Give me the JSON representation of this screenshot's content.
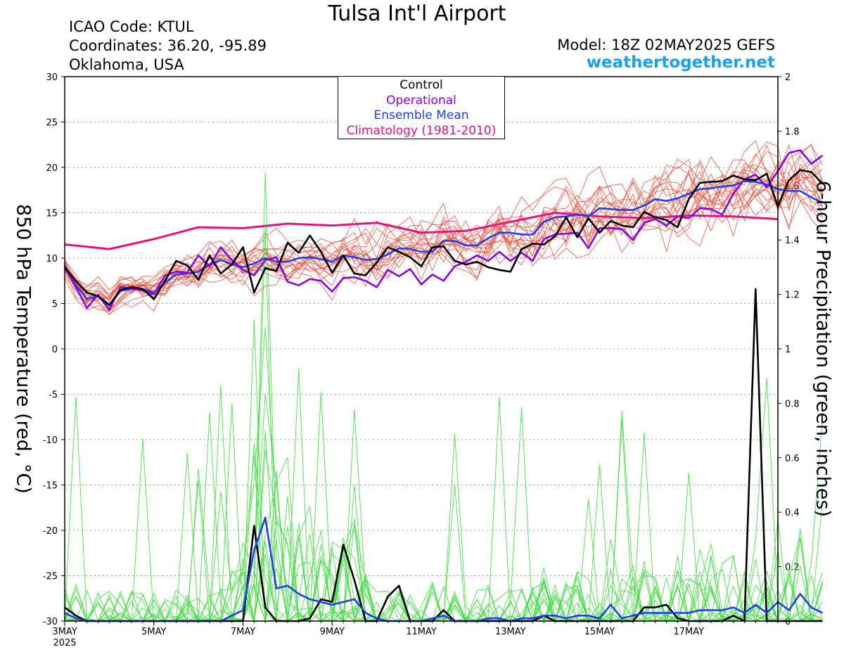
{
  "header": {
    "title": "Tulsa Int'l Airport",
    "icao": "ICAO Code: KTUL",
    "coordinates": "Coordinates: 36.20, -95.89",
    "location": "Oklahoma, USA",
    "model": "Model: 18Z 02MAY2025 GEFS",
    "site": "weathertogether.net"
  },
  "colors": {
    "temp_members": "#f0503c",
    "precip_members": "#3cdc3c",
    "control": "#000000",
    "operational": "#8a00e0",
    "ensemble_mean": "#1f3ff0",
    "climatology": "#e8127c",
    "site": "#1aa0ee"
  },
  "chart_data": {
    "type": "line",
    "title": "Tulsa Int'l Airport",
    "ylabel": "850 hPa Temperature (red, °C)",
    "y2label": "6-hour Precipitation (green, inches)",
    "ylim": [
      -30,
      30
    ],
    "y2lim": [
      0,
      2
    ],
    "xlim_days": [
      0.0,
      16.0
    ],
    "x_ticks": [
      {
        "day": 0,
        "label": "3MAY",
        "label2": "2025"
      },
      {
        "day": 2,
        "label": "5MAY"
      },
      {
        "day": 4,
        "label": "7MAY"
      },
      {
        "day": 6,
        "label": "9MAY"
      },
      {
        "day": 8,
        "label": "11MAY"
      },
      {
        "day": 10,
        "label": "13MAY"
      },
      {
        "day": 12,
        "label": "15MAY"
      },
      {
        "day": 14,
        "label": "17MAY"
      }
    ],
    "y_ticks": [
      "30",
      "25",
      "20",
      "15",
      "10",
      "5",
      "0",
      "-5",
      "-10",
      "-15",
      "-20",
      "-25",
      "-30"
    ],
    "y2_ticks": [
      "2",
      "1.8",
      "1.6",
      "1.4",
      "1.2",
      "1",
      "0.8",
      "0.6",
      "0.4",
      "0.2",
      "0"
    ],
    "grid": true,
    "legend": {
      "placement": "top-center",
      "entries": [
        "Control",
        "Operational",
        "Ensemble Mean",
        "Climatology (1981-2010)"
      ]
    },
    "series": [
      {
        "name": "Control",
        "axis": "left",
        "x_step_days": 0.25,
        "values": [
          9,
          7.5,
          6.2,
          5.8,
          4.8,
          6.5,
          6.8,
          6.6,
          5.5,
          7.5,
          9.7,
          9.2,
          7.6,
          10.3,
          8.3,
          9.3,
          11.2,
          6.2,
          8.9,
          8.6,
          11.7,
          10.6,
          12.5,
          10.7,
          8.4,
          10.3,
          8.3,
          8.1,
          9.5,
          11.2,
          10.7,
          10.1,
          9.1,
          11.2,
          11.3,
          9.7,
          9.3,
          9.6,
          9,
          8.7,
          8.5,
          11,
          11.6,
          11.5,
          12.4,
          14.5,
          12.3,
          14.4,
          12.8,
          14.1,
          13.6,
          13.4,
          15.1,
          14.5,
          14.2,
          13.4,
          16.5,
          18.3,
          18.4,
          18.5,
          19.1,
          18.7,
          18.6,
          19.3,
          15.7,
          18.6,
          19.7,
          19.5,
          18.2
        ]
      },
      {
        "name": "Operational",
        "axis": "left",
        "x_step_days": 0.25,
        "values": [
          9.2,
          6.8,
          4.5,
          6,
          4.3,
          6.8,
          6.7,
          6.4,
          6,
          8.1,
          8.5,
          8.4,
          10.3,
          9.1,
          11.2,
          9.8,
          8.7,
          8.1,
          9.8,
          10.1,
          7.4,
          7,
          7.7,
          7.5,
          6.3,
          7.8,
          7.9,
          7.5,
          6.8,
          8.7,
          8,
          8.8,
          7.1,
          8.2,
          7.5,
          9.1,
          9.6,
          10.3,
          9.7,
          10.7,
          9.7,
          10.6,
          9.7,
          12.1,
          12.6,
          12.7,
          12.8,
          11.1,
          13.3,
          13.3,
          13.2,
          12,
          13.9,
          14.3,
          13.6,
          14.6,
          14.4,
          15.5,
          15.4,
          14.8,
          17.1,
          18.7,
          19.2,
          17.8,
          19.6,
          21.6,
          21.9,
          20.4,
          21.3
        ]
      },
      {
        "name": "Ensemble Mean",
        "axis": "left",
        "x_step_days": 0.25,
        "values": [
          9,
          7,
          5.5,
          5.8,
          4.9,
          6.4,
          6.6,
          6.6,
          6.2,
          7.3,
          8.2,
          8.3,
          8.5,
          9.3,
          9.8,
          9.3,
          9,
          9.4,
          10,
          9.6,
          9.6,
          10,
          10.1,
          9.9,
          9.6,
          10.3,
          10.1,
          9.8,
          9.9,
          10.4,
          11.1,
          11,
          10.7,
          10.7,
          11.9,
          11.9,
          11.4,
          11.4,
          12.2,
          12.8,
          12.8,
          12.6,
          12.6,
          14,
          14.5,
          14.6,
          14.8,
          14.6,
          15.5,
          15.4,
          15.3,
          15.3,
          15.8,
          16.5,
          16.3,
          16.6,
          17.1,
          17.6,
          17.7,
          17.9,
          18,
          18.5,
          18.4,
          18.1,
          17.6,
          17.4,
          17.4,
          16.7,
          16.1
        ]
      },
      {
        "name": "Climatology (1981-2010)",
        "axis": "left",
        "x_step_days": 1.0,
        "values": [
          11.5,
          11,
          12.1,
          13.4,
          13.3,
          13.8,
          13.6,
          13.9,
          12.8,
          13,
          14,
          15,
          14.6,
          14.4,
          14.7,
          14.6,
          14.3
        ]
      },
      {
        "name": "Control",
        "axis": "right",
        "x_step_days": 0.25,
        "values": [
          0.05,
          0.02,
          0,
          0,
          0,
          0,
          0,
          0,
          0,
          0,
          0,
          0,
          0,
          0,
          0,
          0,
          0,
          0.35,
          0.05,
          0,
          0,
          0,
          0.01,
          0.08,
          0.07,
          0.28,
          0.15,
          0,
          0,
          0.09,
          0.13,
          0,
          0,
          0,
          0.04,
          0,
          0,
          0,
          0,
          0,
          0,
          0,
          0,
          0.02,
          0,
          0,
          0,
          0,
          0,
          0,
          0,
          0,
          0.05,
          0.05,
          0.06,
          0.01,
          0,
          0,
          0,
          0,
          0.02,
          0,
          1.22,
          0,
          0,
          0,
          0,
          0,
          0
        ]
      },
      {
        "name": "Ensemble Mean",
        "axis": "right",
        "x_step_days": 0.25,
        "values": [
          0.03,
          0.01,
          0,
          0,
          0,
          0,
          0,
          0,
          0,
          0,
          0,
          0,
          0,
          0,
          0,
          0.02,
          0.04,
          0.26,
          0.38,
          0.12,
          0.13,
          0.1,
          0.08,
          0.07,
          0.06,
          0.07,
          0.08,
          0.03,
          0.01,
          0,
          0,
          0,
          0,
          0.01,
          0.02,
          0,
          0,
          0,
          0.01,
          0.01,
          0,
          0.01,
          0.01,
          0.02,
          0.02,
          0.01,
          0.02,
          0.02,
          0.01,
          0.06,
          0.01,
          0.02,
          0.03,
          0.03,
          0.03,
          0.03,
          0.03,
          0.04,
          0.04,
          0.04,
          0.05,
          0.03,
          0.06,
          0.03,
          0.07,
          0.04,
          0.1,
          0.05,
          0.03
        ]
      }
    ]
  }
}
